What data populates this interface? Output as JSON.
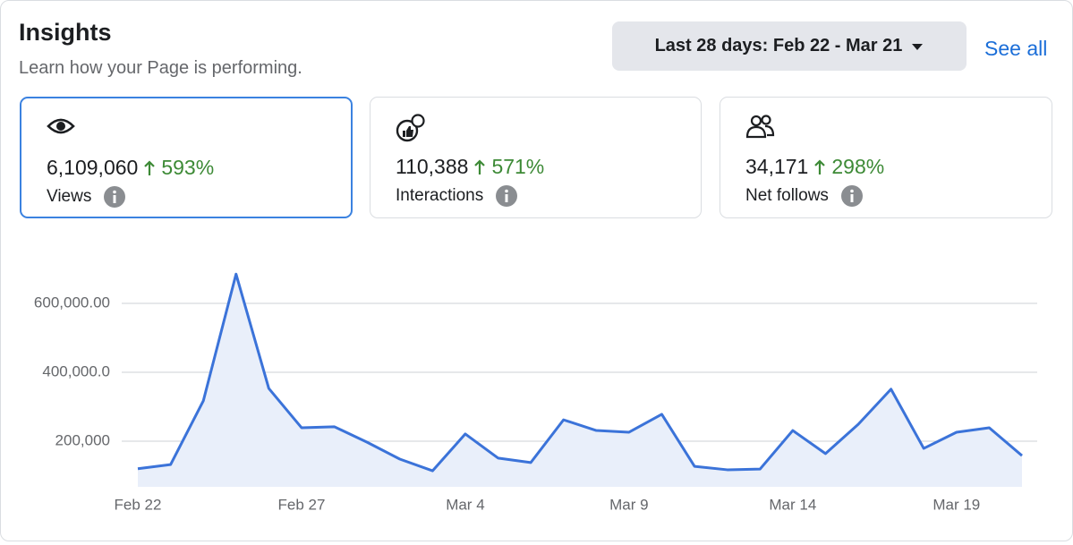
{
  "header": {
    "title": "Insights",
    "subtitle": "Learn how your Page is performing.",
    "date_range": "Last 28 days: Feb 22 - Mar 21",
    "see_all": "See all"
  },
  "cards": [
    {
      "value": "6,109,060",
      "change": "593%",
      "label": "Views"
    },
    {
      "value": "110,388",
      "change": "571%",
      "label": "Interactions"
    },
    {
      "value": "34,171",
      "change": "298%",
      "label": "Net follows"
    }
  ],
  "chart_data": {
    "type": "line",
    "categories": [
      "Feb 22",
      null,
      null,
      null,
      null,
      "Feb 27",
      null,
      null,
      null,
      null,
      "Mar 4",
      null,
      null,
      null,
      null,
      "Mar 9",
      null,
      null,
      null,
      null,
      "Mar 14",
      null,
      null,
      null,
      null,
      "Mar 19",
      null,
      null
    ],
    "values": [
      120000,
      132000,
      317000,
      685000,
      353000,
      239000,
      242000,
      197000,
      148000,
      114000,
      221000,
      151000,
      138000,
      262000,
      231000,
      226000,
      278000,
      127000,
      117000,
      119000,
      231000,
      164000,
      249000,
      351000,
      179000,
      226000,
      239000,
      158000
    ],
    "color": "#3b73d9",
    "area_color": "#e9effa",
    "ylim": [
      67500,
      700000
    ],
    "yticks": [
      {
        "value": 200000,
        "label": "200,000"
      },
      {
        "value": 400000,
        "label": "400,000.0"
      },
      {
        "value": 600000,
        "label": "600,000.00"
      }
    ],
    "grid": true
  }
}
